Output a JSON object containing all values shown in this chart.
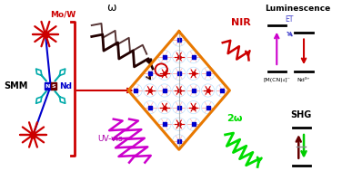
{
  "background": "#ffffff",
  "mol_label": "Mo/W",
  "smm_label": "SMM",
  "nd_label": "Nd",
  "n_label": "N",
  "s_label": "S",
  "omega_label": "ω",
  "two_omega_label": "2ω",
  "nir_label": "NIR",
  "uvvis_label": "UV-vis",
  "lum_label": "Luminescence",
  "shg_label": "SHG",
  "et_label": "ET",
  "mcn_label": "[M(CN)₄]⁻",
  "nd3_label": "Nd³⁺",
  "red": "#cc0000",
  "dark_red": "#5a0000",
  "orange": "#e87800",
  "blue": "#0000cc",
  "green": "#00cc00",
  "magenta": "#cc00cc",
  "dark_magenta": "#aa00aa",
  "cyan": "#00aaaa",
  "black": "#000000",
  "purple_blue": "#4444cc",
  "dark_brown": "#220000",
  "gray": "#888888",
  "light_red": "#ff9999",
  "light_blue": "#aaddff"
}
